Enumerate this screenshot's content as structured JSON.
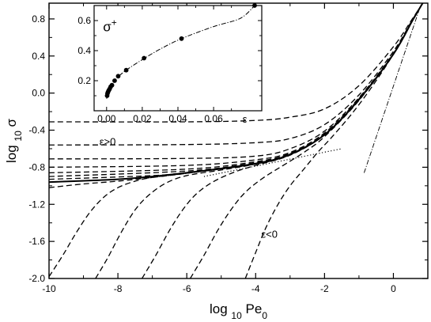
{
  "chart_data": [
    {
      "type": "line",
      "title": "",
      "xlabel": {
        "base": "log",
        "sub": "10",
        "rest": "Pe",
        "rest_sub": "0"
      },
      "ylabel": {
        "base": "log",
        "sub": "10",
        "rest": "σ"
      },
      "xlim": [
        -10,
        1
      ],
      "ylim": [
        -2.0,
        0.97
      ],
      "x_ticks": [
        -10,
        -8,
        -6,
        -4,
        -2,
        0
      ],
      "x_tick_labels": [
        "-10",
        "-8",
        "-6",
        "-4",
        "-2",
        "0"
      ],
      "y_ticks": [
        -2.0,
        -1.6,
        -1.2,
        -0.8,
        -0.4,
        0.0,
        0.4,
        0.8
      ],
      "y_tick_labels": [
        "-2.0",
        "-1.6",
        "-1.2",
        "-0.8",
        "-0.4",
        "0.0",
        "0.4",
        "0.8"
      ],
      "grid": false,
      "annotations": [
        {
          "text": "ε>0",
          "x": -8.3,
          "y": -0.56
        },
        {
          "text": "ε<0",
          "x": -3.6,
          "y": -1.56
        }
      ],
      "series": [
        {
          "style": "dashed",
          "points": [
            [
              -10,
              -0.31
            ],
            [
              -6,
              -0.31
            ],
            [
              -4,
              -0.295
            ],
            [
              -3,
              -0.26
            ],
            [
              -2,
              -0.17
            ],
            [
              -1,
              0.08
            ],
            [
              0,
              0.5
            ],
            [
              0.55,
              0.8
            ],
            [
              0.85,
              0.97
            ]
          ]
        },
        {
          "style": "dashed",
          "points": [
            [
              -10,
              -0.56
            ],
            [
              -6,
              -0.555
            ],
            [
              -4,
              -0.535
            ],
            [
              -3,
              -0.49
            ],
            [
              -2,
              -0.34
            ],
            [
              -1,
              -0.02
            ],
            [
              0,
              0.45
            ],
            [
              0.55,
              0.79
            ],
            [
              0.85,
              0.97
            ]
          ]
        },
        {
          "style": "dashed",
          "points": [
            [
              -10,
              -0.71
            ],
            [
              -6,
              -0.705
            ],
            [
              -4,
              -0.68
            ],
            [
              -3,
              -0.6
            ],
            [
              -2,
              -0.41
            ],
            [
              -1,
              -0.05
            ],
            [
              0,
              0.43
            ],
            [
              0.55,
              0.78
            ],
            [
              0.85,
              0.97
            ]
          ]
        },
        {
          "style": "dashed",
          "points": [
            [
              -10,
              -0.8
            ],
            [
              -6,
              -0.78
            ],
            [
              -4,
              -0.72
            ],
            [
              -3,
              -0.64
            ],
            [
              -2,
              -0.43
            ],
            [
              -1,
              -0.06
            ],
            [
              0,
              0.42
            ],
            [
              0.55,
              0.78
            ],
            [
              0.85,
              0.97
            ]
          ]
        },
        {
          "style": "dashed",
          "points": [
            [
              -10,
              -0.86
            ],
            [
              -6,
              -0.82
            ],
            [
              -4,
              -0.74
            ],
            [
              -3,
              -0.65
            ],
            [
              -2,
              -0.44
            ],
            [
              -1,
              -0.07
            ],
            [
              0,
              0.42
            ],
            [
              0.55,
              0.78
            ],
            [
              0.85,
              0.97
            ]
          ]
        },
        {
          "style": "dashed",
          "points": [
            [
              -10,
              -0.9
            ],
            [
              -6,
              -0.84
            ],
            [
              -4,
              -0.75
            ],
            [
              -3,
              -0.655
            ],
            [
              -2,
              -0.445
            ],
            [
              -1,
              -0.07
            ],
            [
              0,
              0.42
            ],
            [
              0.55,
              0.78
            ],
            [
              0.85,
              0.97
            ]
          ]
        },
        {
          "style": "dashed",
          "points": [
            [
              -10,
              -0.93
            ],
            [
              -7,
              -0.89
            ],
            [
              -6,
              -0.855
            ],
            [
              -4,
              -0.76
            ],
            [
              -3,
              -0.66
            ],
            [
              -2,
              -0.45
            ],
            [
              -1,
              -0.07
            ],
            [
              0,
              0.42
            ],
            [
              0.55,
              0.78
            ],
            [
              0.85,
              0.97
            ]
          ]
        },
        {
          "style": "dashed",
          "points": [
            [
              -10,
              -0.96
            ],
            [
              -8,
              -0.93
            ],
            [
              -7,
              -0.9
            ],
            [
              -6,
              -0.86
            ],
            [
              -4,
              -0.76
            ],
            [
              -3,
              -0.66
            ],
            [
              -2,
              -0.45
            ],
            [
              -1,
              -0.07
            ],
            [
              0,
              0.42
            ],
            [
              0.55,
              0.78
            ],
            [
              0.85,
              0.97
            ]
          ]
        },
        {
          "style": "dashed",
          "points": [
            [
              -10,
              -1.02
            ],
            [
              -9,
              -0.98
            ],
            [
              -8,
              -0.95
            ],
            [
              -7,
              -0.91
            ],
            [
              -6,
              -0.865
            ],
            [
              -4,
              -0.765
            ],
            [
              -3,
              -0.665
            ],
            [
              -2,
              -0.45
            ],
            [
              -1,
              -0.07
            ],
            [
              0,
              0.42
            ],
            [
              0.55,
              0.78
            ],
            [
              0.85,
              0.97
            ]
          ]
        },
        {
          "style": "dashed",
          "points": [
            [
              -10,
              -1.98
            ],
            [
              -9.6,
              -1.75
            ],
            [
              -9.2,
              -1.5
            ],
            [
              -8.8,
              -1.28
            ],
            [
              -8.4,
              -1.12
            ],
            [
              -8,
              -1.02
            ],
            [
              -7.5,
              -0.95
            ],
            [
              -7,
              -0.91
            ],
            [
              -6,
              -0.865
            ],
            [
              -4,
              -0.765
            ],
            [
              -3,
              -0.665
            ],
            [
              -2,
              -0.45
            ],
            [
              -1,
              -0.07
            ],
            [
              0,
              0.42
            ],
            [
              0.55,
              0.78
            ],
            [
              0.85,
              0.97
            ]
          ]
        },
        {
          "style": "dashed",
          "points": [
            [
              -8.65,
              -2.0
            ],
            [
              -8.3,
              -1.78
            ],
            [
              -7.9,
              -1.5
            ],
            [
              -7.5,
              -1.26
            ],
            [
              -7.1,
              -1.1
            ],
            [
              -6.6,
              -0.97
            ],
            [
              -6,
              -0.89
            ],
            [
              -5,
              -0.83
            ],
            [
              -4,
              -0.765
            ],
            [
              -3,
              -0.665
            ],
            [
              -2,
              -0.45
            ],
            [
              -1,
              -0.07
            ],
            [
              0,
              0.42
            ],
            [
              0.55,
              0.78
            ],
            [
              0.85,
              0.97
            ]
          ]
        },
        {
          "style": "dashed",
          "points": [
            [
              -7.3,
              -2.0
            ],
            [
              -6.9,
              -1.75
            ],
            [
              -6.5,
              -1.48
            ],
            [
              -6.1,
              -1.25
            ],
            [
              -5.7,
              -1.08
            ],
            [
              -5.2,
              -0.95
            ],
            [
              -4.6,
              -0.85
            ],
            [
              -4,
              -0.78
            ],
            [
              -3,
              -0.67
            ],
            [
              -2,
              -0.45
            ],
            [
              -1,
              -0.07
            ],
            [
              0,
              0.42
            ],
            [
              0.55,
              0.78
            ],
            [
              0.85,
              0.97
            ]
          ]
        },
        {
          "style": "dashed",
          "points": [
            [
              -5.9,
              -2.0
            ],
            [
              -5.5,
              -1.75
            ],
            [
              -5.1,
              -1.48
            ],
            [
              -4.7,
              -1.25
            ],
            [
              -4.3,
              -1.07
            ],
            [
              -3.8,
              -0.92
            ],
            [
              -3.2,
              -0.78
            ],
            [
              -2.6,
              -0.64
            ],
            [
              -2,
              -0.47
            ],
            [
              -1,
              -0.08
            ],
            [
              0,
              0.42
            ],
            [
              0.55,
              0.78
            ],
            [
              0.85,
              0.97
            ]
          ]
        },
        {
          "style": "dashed",
          "points": [
            [
              -4.3,
              -2.0
            ],
            [
              -4.0,
              -1.72
            ],
            [
              -3.7,
              -1.45
            ],
            [
              -3.35,
              -1.2
            ],
            [
              -3.0,
              -1.0
            ],
            [
              -2.6,
              -0.82
            ],
            [
              -2.2,
              -0.64
            ],
            [
              -1.8,
              -0.48
            ],
            [
              -1.2,
              -0.22
            ],
            [
              -0.6,
              0.08
            ],
            [
              0,
              0.42
            ],
            [
              0.55,
              0.78
            ],
            [
              0.85,
              0.97
            ]
          ]
        },
        {
          "style": "solid",
          "points": [
            [
              -10,
              -0.96
            ],
            [
              -8,
              -0.93
            ],
            [
              -7,
              -0.9
            ],
            [
              -6,
              -0.86
            ],
            [
              -4,
              -0.76
            ],
            [
              -3,
              -0.66
            ],
            [
              -2,
              -0.45
            ],
            [
              -1,
              -0.07
            ],
            [
              0,
              0.42
            ],
            [
              0.55,
              0.78
            ],
            [
              0.85,
              0.97
            ]
          ]
        },
        {
          "style": "dotted",
          "points": [
            [
              -5.5,
              -0.9
            ],
            [
              -1.5,
              -0.6
            ]
          ]
        },
        {
          "style": "dashdot",
          "points": [
            [
              -0.85,
              -0.86
            ],
            [
              0.75,
              0.9
            ]
          ]
        }
      ]
    },
    {
      "type": "scatter",
      "title": "",
      "label": {
        "base": "σ",
        "sup": "+"
      },
      "xlabel": "ε",
      "xlim": [
        -0.007,
        0.087
      ],
      "ylim": [
        0.0,
        0.7
      ],
      "x_ticks": [
        0.0,
        0.02,
        0.04,
        0.06
      ],
      "x_tick_labels": [
        "0.00",
        "0.02",
        "0.04",
        "0.06"
      ],
      "y_ticks": [
        0.2,
        0.4,
        0.6
      ],
      "y_tick_labels": [
        "0.2",
        "0.4",
        "0.6"
      ],
      "grid": false,
      "points": [
        [
          0.0003,
          0.1
        ],
        [
          0.0005,
          0.115
        ],
        [
          0.0008,
          0.125
        ],
        [
          0.0012,
          0.135
        ],
        [
          0.0017,
          0.145
        ],
        [
          0.0023,
          0.16
        ],
        [
          0.003,
          0.17
        ],
        [
          0.0045,
          0.2
        ],
        [
          0.0065,
          0.23
        ],
        [
          0.011,
          0.27
        ],
        [
          0.021,
          0.35
        ],
        [
          0.042,
          0.48
        ],
        [
          0.083,
          0.7
        ]
      ],
      "fit_points": [
        [
          0.0,
          0.08
        ],
        [
          0.001,
          0.13
        ],
        [
          0.003,
          0.175
        ],
        [
          0.006,
          0.22
        ],
        [
          0.011,
          0.27
        ],
        [
          0.02,
          0.34
        ],
        [
          0.03,
          0.41
        ],
        [
          0.042,
          0.48
        ],
        [
          0.06,
          0.56
        ],
        [
          0.075,
          0.615
        ],
        [
          0.083,
          0.7
        ]
      ]
    }
  ]
}
